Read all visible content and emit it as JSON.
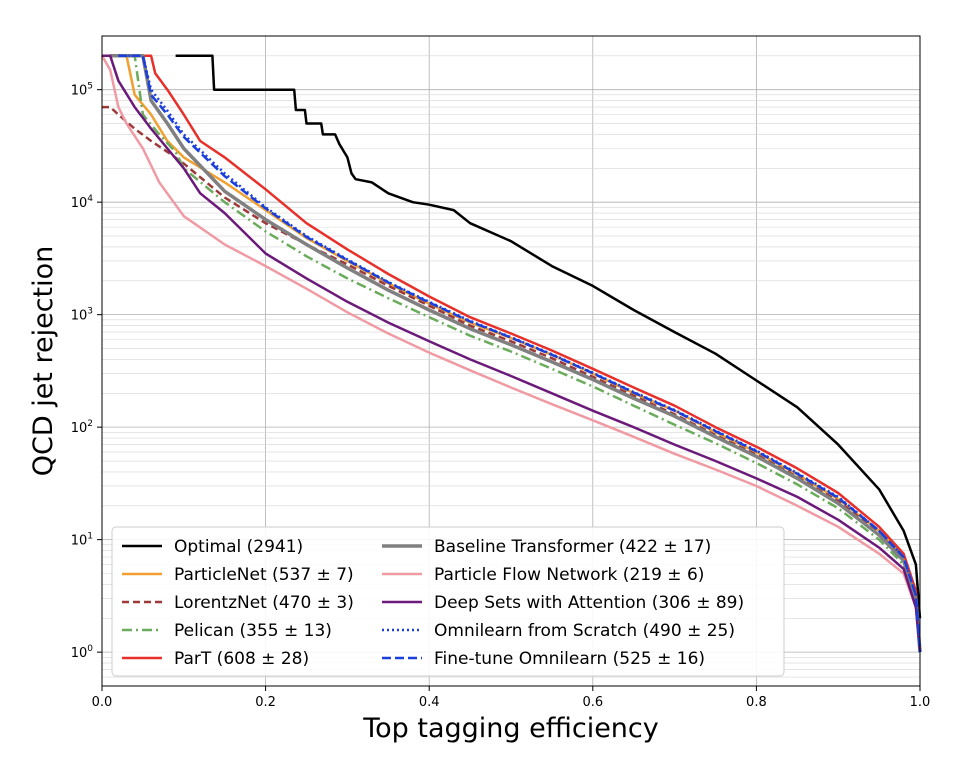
{
  "chart_data": {
    "type": "line",
    "xlabel": "Top tagging efficiency",
    "ylabel": "QCD jet rejection",
    "xlim": [
      0.0,
      1.0
    ],
    "ylim": [
      0.5,
      300000
    ],
    "yscale": "log",
    "grid": true,
    "legend_position": "lower-left",
    "x_ticks": [
      "0.0",
      "0.2",
      "0.4",
      "0.6",
      "0.8",
      "1.0"
    ],
    "y_ticks": [
      {
        "base": "10",
        "exp": "0"
      },
      {
        "base": "10",
        "exp": "1"
      },
      {
        "base": "10",
        "exp": "2"
      },
      {
        "base": "10",
        "exp": "3"
      },
      {
        "base": "10",
        "exp": "4"
      },
      {
        "base": "10",
        "exp": "5"
      }
    ],
    "series": [
      {
        "name": "Optimal (2941)",
        "color": "#000000",
        "dash": "solid",
        "width": 2.5,
        "points": [
          [
            0.09,
            200000
          ],
          [
            0.135,
            200000
          ],
          [
            0.137,
            100000
          ],
          [
            0.235,
            100000
          ],
          [
            0.237,
            66000
          ],
          [
            0.248,
            66000
          ],
          [
            0.25,
            50000
          ],
          [
            0.268,
            50000
          ],
          [
            0.27,
            40000
          ],
          [
            0.285,
            40000
          ],
          [
            0.29,
            33000
          ],
          [
            0.3,
            25000
          ],
          [
            0.305,
            18000
          ],
          [
            0.31,
            16000
          ],
          [
            0.33,
            15000
          ],
          [
            0.35,
            12000
          ],
          [
            0.38,
            10000
          ],
          [
            0.4,
            9500
          ],
          [
            0.43,
            8500
          ],
          [
            0.45,
            6500
          ],
          [
            0.5,
            4500
          ],
          [
            0.55,
            2700
          ],
          [
            0.6,
            1800
          ],
          [
            0.65,
            1100
          ],
          [
            0.7,
            700
          ],
          [
            0.75,
            450
          ],
          [
            0.8,
            260
          ],
          [
            0.85,
            150
          ],
          [
            0.9,
            70
          ],
          [
            0.95,
            28
          ],
          [
            0.98,
            12
          ],
          [
            0.995,
            6
          ],
          [
            1.0,
            2
          ]
        ]
      },
      {
        "name": "ParticleNet (537 ± 7)",
        "color": "#f0a030",
        "dash": "solid",
        "width": 2.5,
        "points": [
          [
            0.01,
            200000
          ],
          [
            0.03,
            200000
          ],
          [
            0.04,
            90000
          ],
          [
            0.06,
            60000
          ],
          [
            0.08,
            35000
          ],
          [
            0.1,
            25000
          ],
          [
            0.15,
            15000
          ],
          [
            0.2,
            8500
          ],
          [
            0.25,
            4800
          ],
          [
            0.3,
            3000
          ],
          [
            0.35,
            1900
          ],
          [
            0.4,
            1250
          ],
          [
            0.45,
            850
          ],
          [
            0.5,
            620
          ],
          [
            0.55,
            440
          ],
          [
            0.6,
            300
          ],
          [
            0.65,
            200
          ],
          [
            0.7,
            140
          ],
          [
            0.75,
            90
          ],
          [
            0.8,
            60
          ],
          [
            0.85,
            38
          ],
          [
            0.9,
            23
          ],
          [
            0.95,
            12
          ],
          [
            0.98,
            7
          ],
          [
            0.995,
            3
          ],
          [
            1.0,
            1
          ]
        ]
      },
      {
        "name": "LorentzNet (470 ± 3)",
        "color": "#9c3a3a",
        "dash": "7,4",
        "width": 2.5,
        "points": [
          [
            0.0,
            70000
          ],
          [
            0.01,
            70000
          ],
          [
            0.02,
            60000
          ],
          [
            0.04,
            45000
          ],
          [
            0.06,
            35000
          ],
          [
            0.08,
            28000
          ],
          [
            0.1,
            22000
          ],
          [
            0.15,
            11000
          ],
          [
            0.2,
            6500
          ],
          [
            0.25,
            4200
          ],
          [
            0.3,
            2800
          ],
          [
            0.35,
            1800
          ],
          [
            0.4,
            1200
          ],
          [
            0.45,
            800
          ],
          [
            0.5,
            580
          ],
          [
            0.55,
            410
          ],
          [
            0.6,
            280
          ],
          [
            0.65,
            190
          ],
          [
            0.7,
            130
          ],
          [
            0.75,
            85
          ],
          [
            0.8,
            57
          ],
          [
            0.85,
            36
          ],
          [
            0.9,
            22
          ],
          [
            0.95,
            11.5
          ],
          [
            0.98,
            6.5
          ],
          [
            0.995,
            3
          ],
          [
            1.0,
            1
          ]
        ]
      },
      {
        "name": "Pelican (355 ± 13)",
        "color": "#6aab5c",
        "dash": "10,4,2,4",
        "width": 2.5,
        "points": [
          [
            0.01,
            200000
          ],
          [
            0.04,
            200000
          ],
          [
            0.05,
            60000
          ],
          [
            0.07,
            40000
          ],
          [
            0.09,
            28000
          ],
          [
            0.1,
            20000
          ],
          [
            0.15,
            10000
          ],
          [
            0.2,
            5500
          ],
          [
            0.25,
            3300
          ],
          [
            0.3,
            2100
          ],
          [
            0.35,
            1400
          ],
          [
            0.4,
            950
          ],
          [
            0.45,
            650
          ],
          [
            0.5,
            470
          ],
          [
            0.55,
            330
          ],
          [
            0.6,
            230
          ],
          [
            0.65,
            155
          ],
          [
            0.7,
            105
          ],
          [
            0.75,
            72
          ],
          [
            0.8,
            48
          ],
          [
            0.85,
            31
          ],
          [
            0.9,
            19
          ],
          [
            0.95,
            10
          ],
          [
            0.98,
            6
          ],
          [
            0.995,
            3
          ],
          [
            1.0,
            1
          ]
        ]
      },
      {
        "name": "ParT (608 ± 28)",
        "color": "#e8302a",
        "dash": "solid",
        "width": 2.5,
        "points": [
          [
            0.03,
            200000
          ],
          [
            0.06,
            200000
          ],
          [
            0.065,
            140000
          ],
          [
            0.08,
            100000
          ],
          [
            0.1,
            60000
          ],
          [
            0.12,
            35000
          ],
          [
            0.15,
            25000
          ],
          [
            0.2,
            13000
          ],
          [
            0.25,
            6500
          ],
          [
            0.3,
            3800
          ],
          [
            0.35,
            2300
          ],
          [
            0.4,
            1450
          ],
          [
            0.45,
            950
          ],
          [
            0.5,
            680
          ],
          [
            0.55,
            480
          ],
          [
            0.6,
            330
          ],
          [
            0.65,
            225
          ],
          [
            0.7,
            155
          ],
          [
            0.75,
            100
          ],
          [
            0.8,
            67
          ],
          [
            0.85,
            43
          ],
          [
            0.9,
            26
          ],
          [
            0.95,
            13
          ],
          [
            0.98,
            7.5
          ],
          [
            0.995,
            3.5
          ],
          [
            1.0,
            1
          ]
        ]
      },
      {
        "name": "Baseline Transformer (422 ± 17)",
        "color": "#808080",
        "dash": "solid",
        "width": 3.5,
        "points": [
          [
            0.01,
            200000
          ],
          [
            0.05,
            200000
          ],
          [
            0.06,
            80000
          ],
          [
            0.08,
            50000
          ],
          [
            0.1,
            30000
          ],
          [
            0.15,
            12500
          ],
          [
            0.2,
            7000
          ],
          [
            0.25,
            4200
          ],
          [
            0.3,
            2600
          ],
          [
            0.35,
            1650
          ],
          [
            0.4,
            1100
          ],
          [
            0.45,
            750
          ],
          [
            0.5,
            540
          ],
          [
            0.55,
            380
          ],
          [
            0.6,
            265
          ],
          [
            0.65,
            180
          ],
          [
            0.7,
            125
          ],
          [
            0.75,
            82
          ],
          [
            0.8,
            55
          ],
          [
            0.85,
            35
          ],
          [
            0.9,
            21
          ],
          [
            0.95,
            11
          ],
          [
            0.98,
            6.5
          ],
          [
            0.995,
            3
          ],
          [
            1.0,
            1
          ]
        ]
      },
      {
        "name": "Particle Flow Network (219 ± 6)",
        "color": "#f09aa4",
        "dash": "solid",
        "width": 2.5,
        "points": [
          [
            0.0,
            200000
          ],
          [
            0.01,
            150000
          ],
          [
            0.02,
            70000
          ],
          [
            0.03,
            50000
          ],
          [
            0.05,
            30000
          ],
          [
            0.07,
            15000
          ],
          [
            0.1,
            7500
          ],
          [
            0.15,
            4200
          ],
          [
            0.2,
            2700
          ],
          [
            0.25,
            1700
          ],
          [
            0.3,
            1050
          ],
          [
            0.35,
            680
          ],
          [
            0.4,
            460
          ],
          [
            0.45,
            320
          ],
          [
            0.5,
            225
          ],
          [
            0.55,
            160
          ],
          [
            0.6,
            115
          ],
          [
            0.65,
            82
          ],
          [
            0.7,
            58
          ],
          [
            0.75,
            42
          ],
          [
            0.8,
            30
          ],
          [
            0.85,
            20
          ],
          [
            0.9,
            13
          ],
          [
            0.95,
            7.5
          ],
          [
            0.98,
            5
          ],
          [
            0.995,
            2.5
          ],
          [
            1.0,
            1
          ]
        ]
      },
      {
        "name": "Deep Sets with Attention (306 ± 89)",
        "color": "#6b1a7a",
        "dash": "solid",
        "width": 2.5,
        "points": [
          [
            0.0,
            200000
          ],
          [
            0.01,
            200000
          ],
          [
            0.02,
            120000
          ],
          [
            0.04,
            70000
          ],
          [
            0.06,
            45000
          ],
          [
            0.08,
            30000
          ],
          [
            0.1,
            20000
          ],
          [
            0.12,
            12000
          ],
          [
            0.15,
            8000
          ],
          [
            0.2,
            3500
          ],
          [
            0.25,
            2100
          ],
          [
            0.3,
            1300
          ],
          [
            0.35,
            850
          ],
          [
            0.4,
            580
          ],
          [
            0.45,
            400
          ],
          [
            0.5,
            285
          ],
          [
            0.55,
            200
          ],
          [
            0.6,
            140
          ],
          [
            0.65,
            100
          ],
          [
            0.7,
            70
          ],
          [
            0.75,
            50
          ],
          [
            0.8,
            35
          ],
          [
            0.85,
            24
          ],
          [
            0.9,
            15
          ],
          [
            0.95,
            8.5
          ],
          [
            0.98,
            5.5
          ],
          [
            0.995,
            2.5
          ],
          [
            1.0,
            1
          ]
        ]
      },
      {
        "name": "Omnilearn from Scratch (490 ± 25)",
        "color": "#1a3fdc",
        "dash": "2,3",
        "width": 2.5,
        "points": [
          [
            0.02,
            200000
          ],
          [
            0.05,
            200000
          ],
          [
            0.06,
            100000
          ],
          [
            0.08,
            65000
          ],
          [
            0.1,
            40000
          ],
          [
            0.15,
            18000
          ],
          [
            0.2,
            9000
          ],
          [
            0.25,
            5000
          ],
          [
            0.3,
            3100
          ],
          [
            0.35,
            1950
          ],
          [
            0.4,
            1300
          ],
          [
            0.45,
            880
          ],
          [
            0.5,
            630
          ],
          [
            0.55,
            445
          ],
          [
            0.6,
            305
          ],
          [
            0.65,
            205
          ],
          [
            0.7,
            142
          ],
          [
            0.75,
            93
          ],
          [
            0.8,
            62
          ],
          [
            0.85,
            39
          ],
          [
            0.9,
            24
          ],
          [
            0.95,
            12
          ],
          [
            0.98,
            7
          ],
          [
            0.995,
            3.2
          ],
          [
            1.0,
            1
          ]
        ]
      },
      {
        "name": "Fine-tune Omnilearn (525 ± 16)",
        "color": "#1a3fdc",
        "dash": "9,4",
        "width": 2.5,
        "points": [
          [
            0.02,
            200000
          ],
          [
            0.05,
            200000
          ],
          [
            0.06,
            90000
          ],
          [
            0.08,
            60000
          ],
          [
            0.1,
            38000
          ],
          [
            0.15,
            17000
          ],
          [
            0.2,
            8800
          ],
          [
            0.25,
            4900
          ],
          [
            0.3,
            3050
          ],
          [
            0.35,
            1930
          ],
          [
            0.4,
            1280
          ],
          [
            0.45,
            870
          ],
          [
            0.5,
            625
          ],
          [
            0.55,
            440
          ],
          [
            0.6,
            302
          ],
          [
            0.65,
            203
          ],
          [
            0.7,
            140
          ],
          [
            0.75,
            92
          ],
          [
            0.8,
            61
          ],
          [
            0.85,
            38.5
          ],
          [
            0.9,
            23.5
          ],
          [
            0.95,
            12
          ],
          [
            0.98,
            7
          ],
          [
            0.995,
            3.2
          ],
          [
            1.0,
            1
          ]
        ]
      }
    ]
  }
}
